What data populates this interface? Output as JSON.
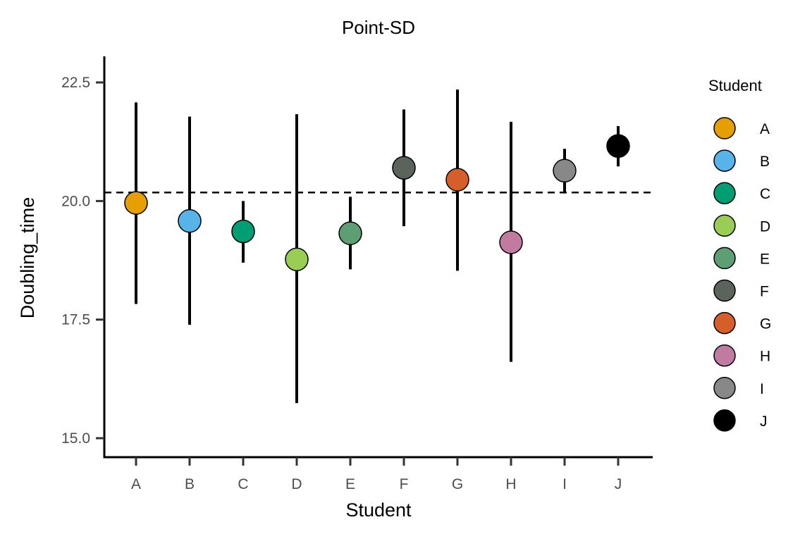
{
  "chart_data": {
    "type": "scatter",
    "title": "Point-SD",
    "xlabel": "Student",
    "ylabel": "Doubling_time",
    "categories": [
      "A",
      "B",
      "C",
      "D",
      "E",
      "F",
      "G",
      "H",
      "I",
      "J"
    ],
    "mean": [
      19.96,
      19.58,
      19.36,
      18.77,
      19.32,
      20.7,
      20.45,
      19.13,
      20.64,
      21.16
    ],
    "sd_low": [
      17.83,
      17.39,
      18.7,
      15.74,
      18.56,
      19.47,
      18.53,
      16.61,
      20.16,
      20.73
    ],
    "sd_high": [
      22.08,
      21.78,
      20.0,
      21.83,
      20.09,
      21.93,
      22.35,
      21.67,
      21.1,
      21.58
    ],
    "reference_line": 20.18,
    "ylim": [
      14.6,
      23.05
    ],
    "yticks": [
      "15.0",
      "17.5",
      "20.0",
      "22.5"
    ],
    "yticks_values": [
      15.0,
      17.5,
      20.0,
      22.5
    ],
    "grid": false,
    "legend": {
      "title": "Student",
      "placement": "right",
      "entries": [
        "A",
        "B",
        "C",
        "D",
        "E",
        "F",
        "G",
        "H",
        "I",
        "J"
      ]
    },
    "colors": [
      "#E69F00",
      "#56B4E9",
      "#009E73",
      "#9ACD53",
      "#5E9E73",
      "#5B645C",
      "#D55E2A",
      "#C27BA0",
      "#888888",
      "#000000"
    ]
  }
}
